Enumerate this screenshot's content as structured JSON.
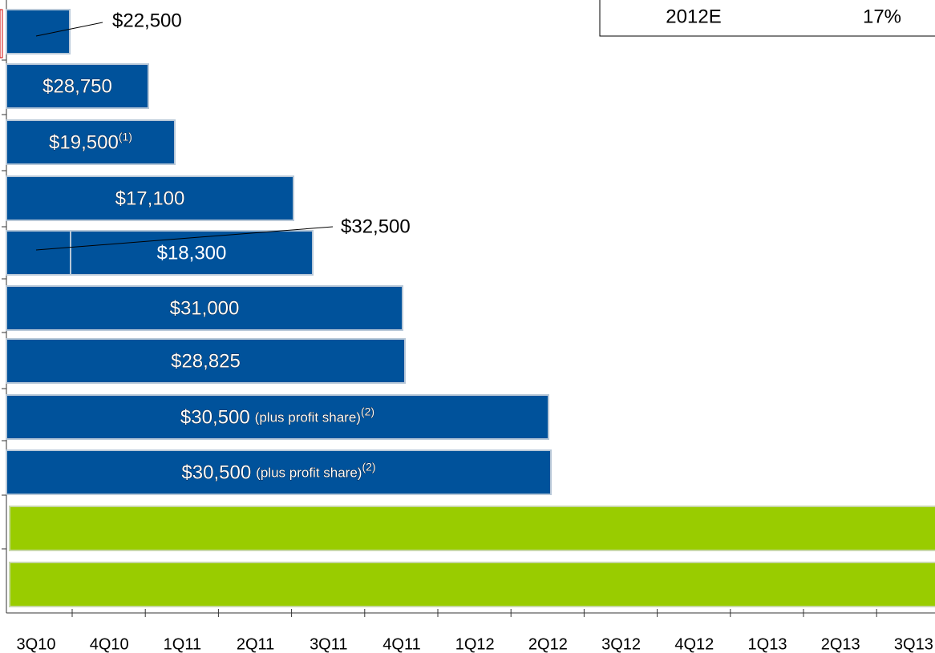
{
  "table": {
    "year": "2012E",
    "rate": "17%"
  },
  "bars": [
    {
      "label": "$22,500"
    },
    {
      "label": "$28,750"
    },
    {
      "label": "$19,500",
      "sup": "(1)"
    },
    {
      "label": "$17,100"
    },
    {
      "label": "$18,300",
      "outside": "$32,500"
    },
    {
      "label": "$31,000"
    },
    {
      "label": "$28,825"
    },
    {
      "label": "$30,500",
      "note": "(plus profit share)",
      "sup": "(2)"
    },
    {
      "label": "$30,500",
      "note": "(plus profit share)",
      "sup": "(2)"
    }
  ],
  "x_axis": {
    "categories": [
      "3Q10",
      "4Q10",
      "1Q11",
      "2Q11",
      "3Q11",
      "4Q11",
      "1Q12",
      "2Q12",
      "3Q12",
      "4Q12",
      "1Q13",
      "2Q13",
      "3Q13"
    ]
  }
}
